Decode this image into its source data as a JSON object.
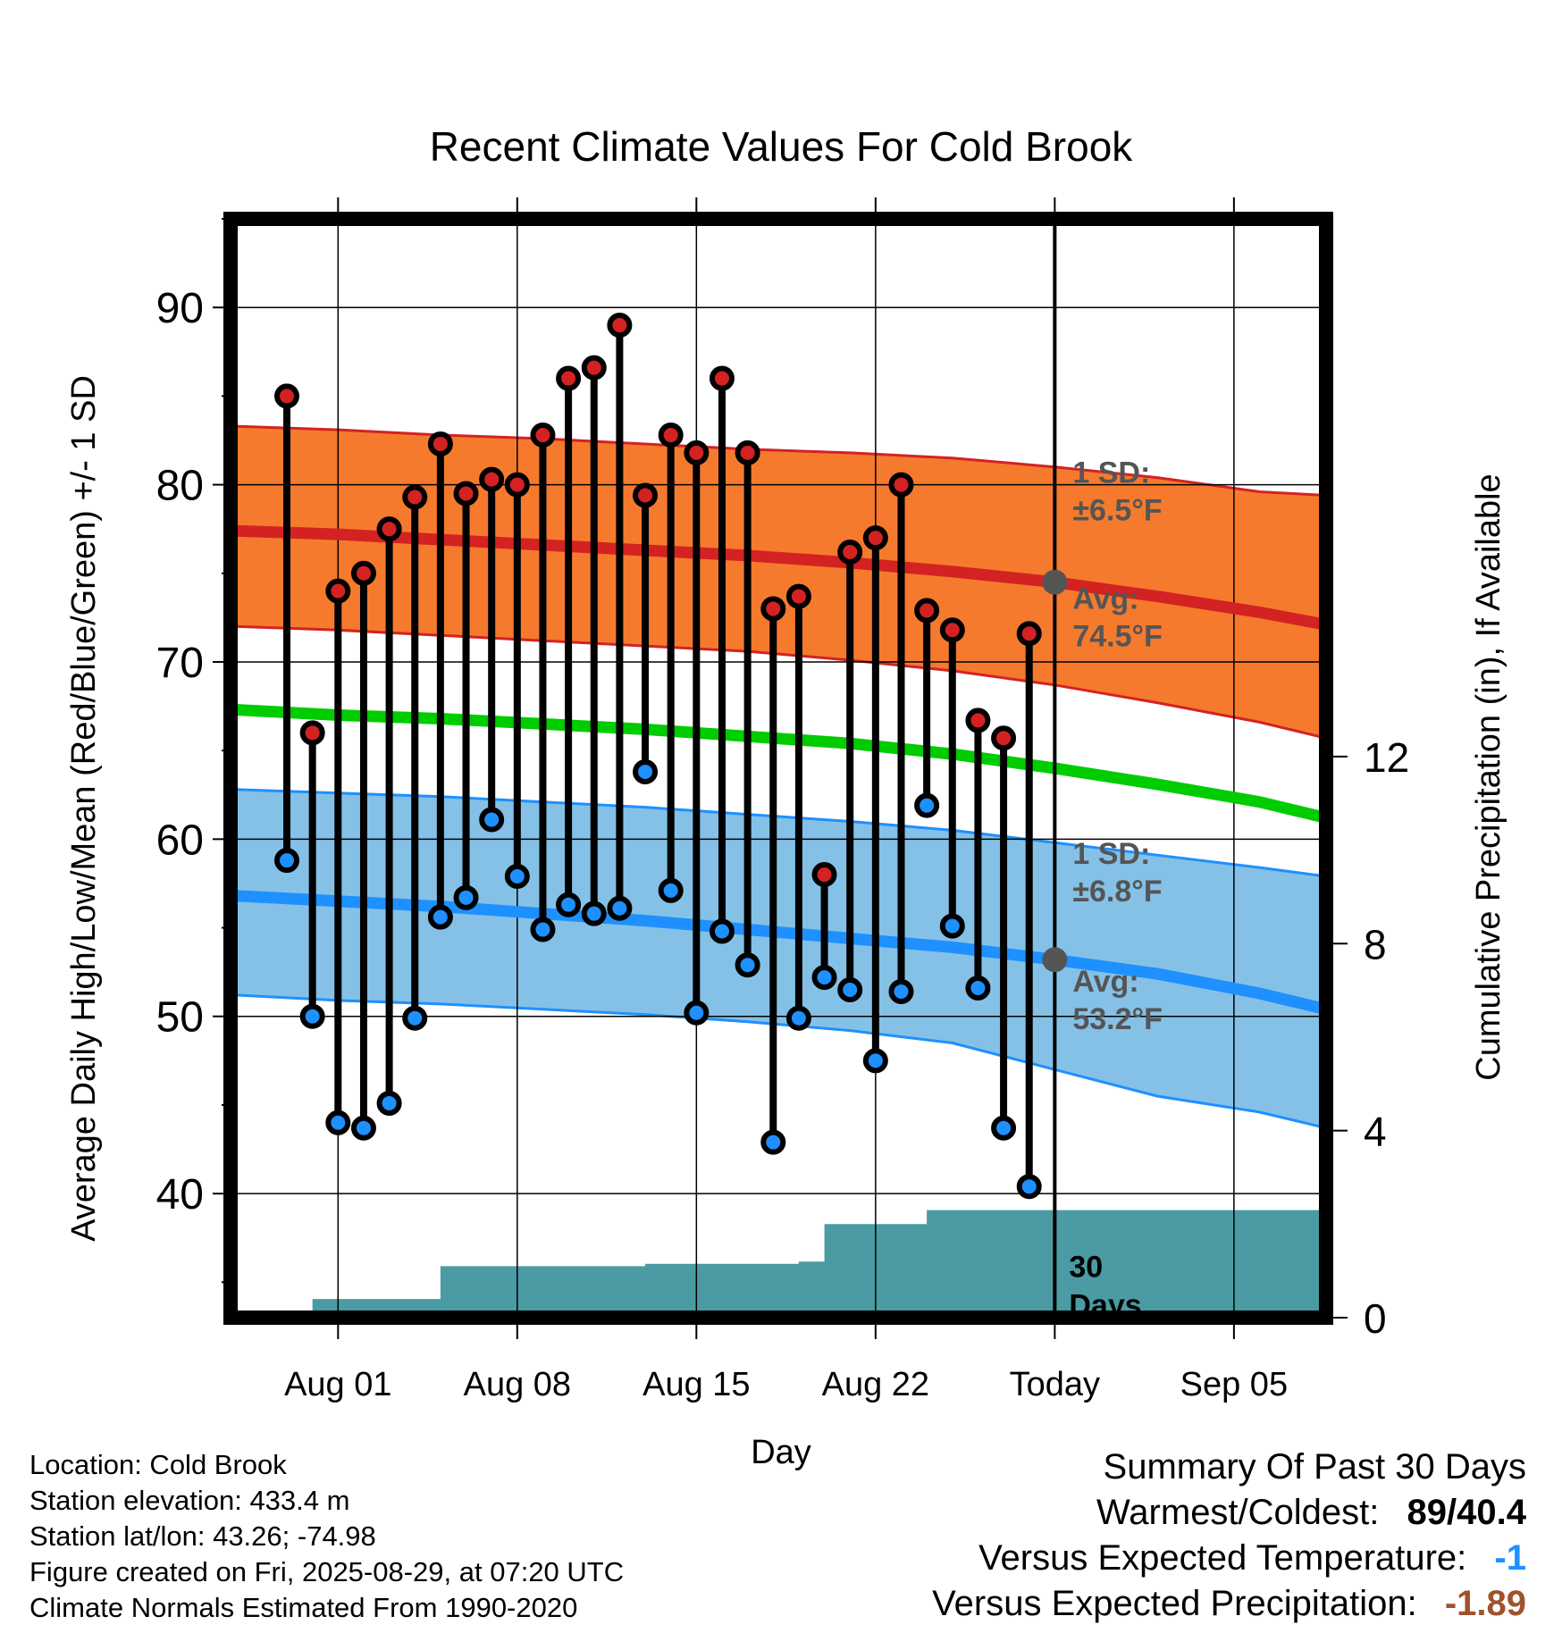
{
  "chart_data": {
    "type": "line",
    "title": "Recent Climate Values For Cold Brook",
    "xlabel": "Day",
    "ylabel": "Average Daily High/Low/Mean (Red/Blue/Green) +/- 1 SD",
    "y2label": "Cumulative Precipitation (in), If Available",
    "ylim": [
      33,
      95
    ],
    "y2lim": [
      0,
      23.5
    ],
    "yticks": [
      40,
      50,
      60,
      70,
      80,
      90
    ],
    "y2ticks": [
      0,
      4,
      8,
      12
    ],
    "xlim": [
      -4.2,
      38.6
    ],
    "xticks": [
      {
        "day": 0,
        "label": "Aug 01"
      },
      {
        "day": 7,
        "label": "Aug 08"
      },
      {
        "day": 14,
        "label": "Aug 15"
      },
      {
        "day": 21,
        "label": "Aug 22"
      },
      {
        "day": 28,
        "label": "Today"
      },
      {
        "day": 35,
        "label": "Sep 05"
      }
    ],
    "grid": true,
    "today_day": 28,
    "days": [
      -2,
      -1,
      0,
      1,
      2,
      3,
      4,
      5,
      6,
      7,
      8,
      9,
      10,
      11,
      12,
      13,
      14,
      15,
      16,
      17,
      18,
      19,
      20,
      21,
      22,
      23,
      24,
      25,
      26,
      27
    ],
    "daily_high": [
      85,
      66,
      74,
      75,
      77.5,
      79.3,
      82.3,
      79.5,
      80.3,
      80,
      82.8,
      86,
      86.6,
      89,
      79.4,
      82.8,
      81.8,
      86,
      81.8,
      73,
      73.7,
      58,
      76.2,
      77,
      80,
      72.9,
      71.8,
      66.7,
      65.7,
      71.6
    ],
    "daily_low": [
      58.8,
      50,
      44,
      43.7,
      45.1,
      49.9,
      55.6,
      56.7,
      61.1,
      57.9,
      54.9,
      56.3,
      55.8,
      56.1,
      63.8,
      57.1,
      50.2,
      54.8,
      52.9,
      42.9,
      49.9,
      52.2,
      51.5,
      47.5,
      51.4,
      61.9,
      55.1,
      51.6,
      43.7,
      40.4
    ],
    "normal_days": [
      -4,
      0,
      4,
      8,
      12,
      16,
      20,
      24,
      28,
      32,
      36,
      38.6
    ],
    "normal_high_mean": [
      77.4,
      77.2,
      76.9,
      76.6,
      76.3,
      76.0,
      75.6,
      75.1,
      74.5,
      73.7,
      72.8,
      72.1
    ],
    "normal_high_upper": [
      83.3,
      83.1,
      82.8,
      82.6,
      82.3,
      82.0,
      81.8,
      81.5,
      81.0,
      80.4,
      79.6,
      79.4
    ],
    "normal_high_lower": [
      72.0,
      71.8,
      71.5,
      71.2,
      70.9,
      70.6,
      70.1,
      69.5,
      68.7,
      67.7,
      66.6,
      65.7
    ],
    "normal_mean": [
      67.3,
      67.0,
      66.8,
      66.5,
      66.2,
      65.8,
      65.4,
      64.8,
      64.0,
      63.1,
      62.1,
      61.2
    ],
    "normal_low_mean": [
      56.8,
      56.5,
      56.2,
      55.8,
      55.4,
      54.9,
      54.4,
      53.9,
      53.2,
      52.4,
      51.3,
      50.4
    ],
    "normal_low_upper": [
      62.8,
      62.6,
      62.4,
      62.1,
      61.8,
      61.4,
      61.0,
      60.5,
      59.8,
      59.1,
      58.4,
      57.9
    ],
    "normal_low_lower": [
      51.2,
      50.9,
      50.7,
      50.4,
      50.1,
      49.7,
      49.2,
      48.5,
      47.0,
      45.5,
      44.6,
      43.7
    ],
    "precip_steps": [
      [
        -2,
        0
      ],
      [
        -1,
        0.4
      ],
      [
        4,
        1.1
      ],
      [
        8,
        1.1
      ],
      [
        12,
        1.15
      ],
      [
        18,
        1.2
      ],
      [
        19,
        2.0
      ],
      [
        23,
        2.3
      ],
      [
        38.6,
        2.3
      ]
    ],
    "precip_label": [
      "30",
      "Days"
    ],
    "annotations": {
      "high_sd": [
        "1 SD:",
        "±6.5°F"
      ],
      "high_avg": [
        "Avg:",
        "74.5°F"
      ],
      "low_sd": [
        "1 SD:",
        "±6.8°F"
      ],
      "low_avg": [
        "Avg:",
        "53.2°F"
      ]
    },
    "today_high_avg": 74.5,
    "today_low_avg": 53.2
  },
  "colors": {
    "high_band": "#f57a2e",
    "high_line": "#d42222",
    "mean_line": "#00cc00",
    "low_band": "#85c1e6",
    "low_line": "#1e90ff",
    "precip": "#4a9ba3",
    "annotation": "#555555",
    "summary_temp": "#1e90ff",
    "summary_precip": "#a0522d"
  },
  "info": {
    "location": "Location: Cold Brook",
    "elevation": "Station elevation: 433.4 m",
    "latlon": "Station lat/lon: 43.26; -74.98",
    "created": "Figure created on Fri, 2025-08-29, at 07:20 UTC",
    "normals": "Climate Normals Estimated From 1990-2020"
  },
  "summary": {
    "heading": "Summary Of Past 30 Days",
    "warmest_label": "Warmest/Coldest:",
    "warmest_value": "89/40.4",
    "temp_label": "Versus Expected Temperature:",
    "temp_value": "-1",
    "precip_label": "Versus Expected Precipitation:",
    "precip_value": "-1.89"
  }
}
